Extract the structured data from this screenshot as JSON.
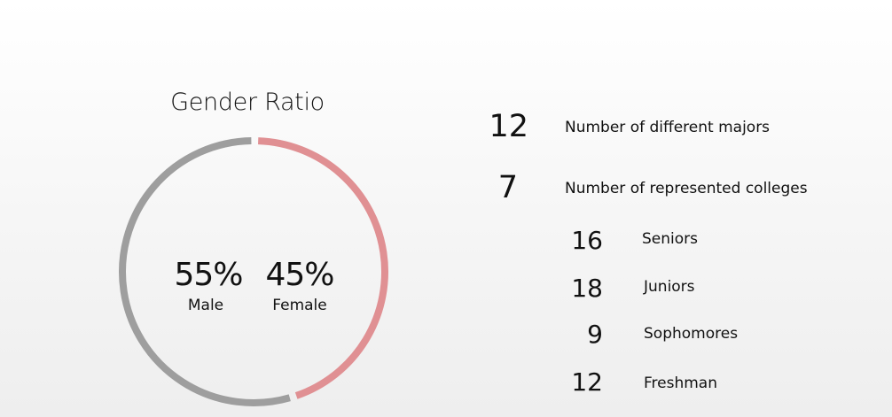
{
  "chart_data": {
    "type": "pie",
    "title": "Gender Ratio",
    "style": "donut",
    "categories": [
      "Male",
      "Female"
    ],
    "values": [
      55,
      45
    ],
    "value_labels": [
      "55%",
      "45%"
    ],
    "colors": [
      "#9e9e9e",
      "#e09093"
    ]
  },
  "stats": [
    {
      "value": "12",
      "label": "Number of different majors"
    },
    {
      "value": "7",
      "label": "Number of represented colleges"
    }
  ],
  "classes": [
    {
      "value": "16",
      "label": "Seniors"
    },
    {
      "value": "18",
      "label": "Juniors"
    },
    {
      "value": "9",
      "label": "Sophomores"
    },
    {
      "value": "12",
      "label": "Freshman"
    }
  ]
}
